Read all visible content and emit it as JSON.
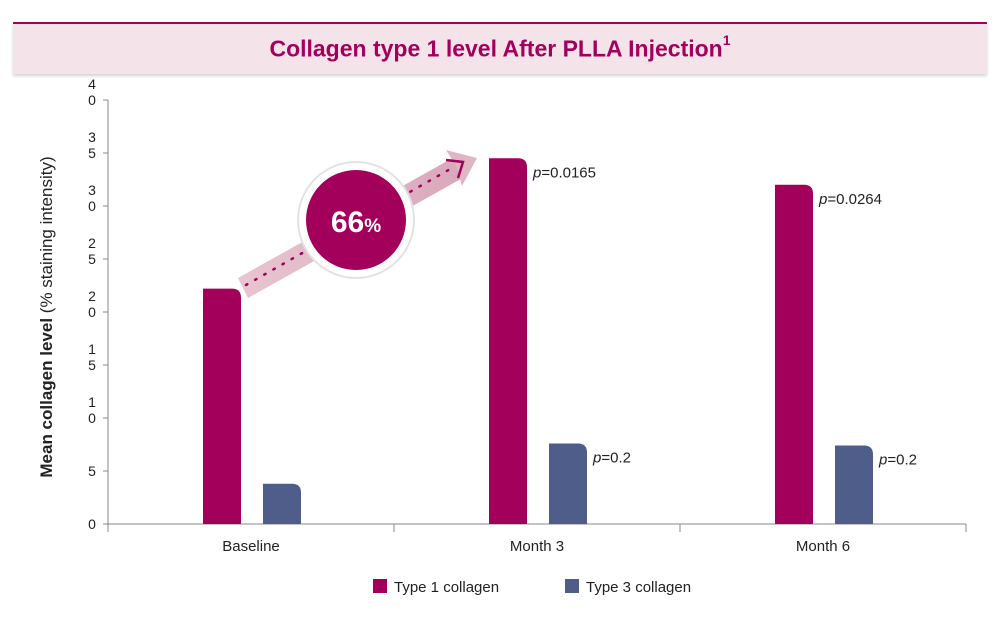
{
  "chart_data": {
    "type": "bar",
    "title": "Collagen type 1 level After PLLA Injection",
    "title_superscript": "1",
    "ylabel_bold": "Mean collagen level",
    "ylabel_rest": "(% staining intensity)",
    "ylim": [
      0,
      40
    ],
    "yticks": [
      {
        "value": 0,
        "label": [
          "0"
        ]
      },
      {
        "value": 5,
        "label": [
          "5"
        ]
      },
      {
        "value": 10,
        "label": [
          "1",
          "0"
        ]
      },
      {
        "value": 15,
        "label": [
          "1",
          "5"
        ]
      },
      {
        "value": 20,
        "label": [
          "2",
          "0"
        ]
      },
      {
        "value": 25,
        "label": [
          "2",
          "5"
        ]
      },
      {
        "value": 30,
        "label": [
          "3",
          "0"
        ]
      },
      {
        "value": 35,
        "label": [
          "3",
          "5"
        ]
      },
      {
        "value": 40,
        "label": [
          "4",
          "0"
        ]
      }
    ],
    "categories": [
      "Baseline",
      "Month 3",
      "Month 6"
    ],
    "series": [
      {
        "name": "Type 1 collagen",
        "color": "#a3005c",
        "values": [
          22.2,
          34.5,
          32.0
        ],
        "pvalues": [
          "",
          "0.0165",
          "0.0264"
        ]
      },
      {
        "name": "Type 3 collagen",
        "color": "#4f5d8a",
        "values": [
          3.8,
          7.6,
          7.4
        ],
        "pvalues": [
          "",
          "0.2",
          "0.2"
        ]
      }
    ],
    "p_prefix": "p",
    "p_sep": "=",
    "annotation": {
      "value": "66",
      "unit": "%",
      "color": "#a3005c"
    },
    "legend_position": "bottom-center",
    "grid": false
  }
}
